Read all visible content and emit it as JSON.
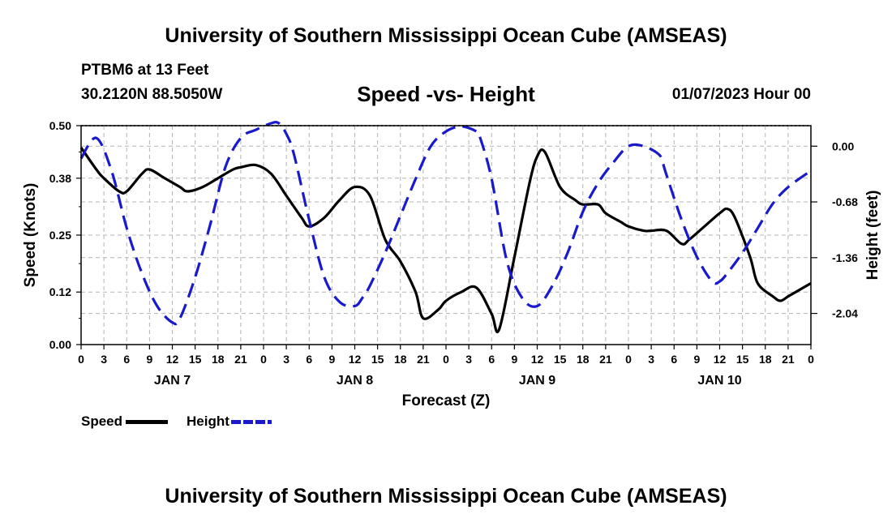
{
  "header": {
    "title": "University of Southern Mississippi Ocean Cube (AMSEAS)",
    "station": "PTBM6 at 13 Feet",
    "coordinates": "30.2120N  88.5050W",
    "subtitle": "Speed -vs- Height",
    "datetime": "01/07/2023 Hour 00"
  },
  "footer": {
    "title": "University of Southern Mississippi Ocean Cube (AMSEAS)"
  },
  "legend": {
    "speed_label": "Speed",
    "height_label": "Height"
  },
  "colors": {
    "speed": "#000000",
    "height": "#1a1acc",
    "grid": "#b4b4b4"
  },
  "chart_data": {
    "type": "line",
    "title": "Speed -vs- Height",
    "xlabel": "Forecast (Z)",
    "ylabel": "Speed (Knots)",
    "ylabel_right": "Height (feet)",
    "grid": true,
    "legend_position": "bottom-left",
    "x_unit": "hours since 01/07/2023 00Z",
    "xlim": [
      0,
      96
    ],
    "x_tick_labels": [
      "0",
      "3",
      "6",
      "9",
      "12",
      "15",
      "18",
      "21",
      "0",
      "3",
      "6",
      "9",
      "12",
      "15",
      "18",
      "21",
      "0",
      "3",
      "6",
      "9",
      "12",
      "15",
      "18",
      "21",
      "0",
      "3",
      "6",
      "9",
      "12",
      "15",
      "18",
      "21",
      "0"
    ],
    "day_labels": [
      {
        "hour": 12,
        "label": "JAN 7"
      },
      {
        "hour": 36,
        "label": "JAN 8"
      },
      {
        "hour": 60,
        "label": "JAN 9"
      },
      {
        "hour": 84,
        "label": "JAN 10"
      }
    ],
    "ylim_left": [
      0,
      0.5
    ],
    "y_ticks_left": [
      "0.00",
      "0.12",
      "0.25",
      "0.38",
      "0.50"
    ],
    "ylim_right": [
      -2.42,
      0.25
    ],
    "y_ticks_right": [
      "0.00",
      "-0.68",
      "-1.36",
      "-2.04"
    ],
    "series": [
      {
        "name": "Speed",
        "axis": "left",
        "style": "solid",
        "x": [
          0,
          2,
          3,
          5,
          6,
          8,
          9,
          11,
          13,
          14,
          16,
          18,
          20,
          21,
          23,
          25,
          27,
          29,
          30,
          32,
          34,
          36,
          38,
          40,
          42,
          44,
          45,
          47,
          48,
          50,
          52,
          54,
          55,
          57,
          59,
          60,
          61,
          63,
          65,
          66,
          68,
          69,
          71,
          72,
          74,
          75,
          77,
          79,
          80,
          82,
          84,
          85,
          86,
          88,
          89,
          91,
          92,
          93,
          94,
          96
        ],
        "values": [
          0.45,
          0.4,
          0.38,
          0.35,
          0.35,
          0.39,
          0.4,
          0.38,
          0.36,
          0.35,
          0.36,
          0.38,
          0.4,
          0.405,
          0.41,
          0.39,
          0.34,
          0.29,
          0.27,
          0.29,
          0.33,
          0.36,
          0.34,
          0.24,
          0.19,
          0.12,
          0.06,
          0.08,
          0.1,
          0.12,
          0.13,
          0.07,
          0.035,
          0.2,
          0.37,
          0.43,
          0.44,
          0.36,
          0.33,
          0.32,
          0.32,
          0.3,
          0.28,
          0.27,
          0.26,
          0.26,
          0.26,
          0.23,
          0.24,
          0.27,
          0.3,
          0.31,
          0.29,
          0.2,
          0.14,
          0.11,
          0.1,
          0.11,
          0.12,
          0.14
        ]
      },
      {
        "name": "Height",
        "axis": "right",
        "style": "dashed",
        "x": [
          0,
          2,
          4,
          6,
          8,
          10,
          12,
          13,
          15,
          17,
          19,
          21,
          23,
          25,
          26,
          27,
          28,
          30,
          32,
          34,
          36,
          37,
          38,
          40,
          42,
          44,
          46,
          48,
          50,
          52,
          52.5,
          54,
          56,
          58,
          60,
          62,
          64,
          66,
          68,
          70,
          72,
          74,
          76,
          76.5,
          77,
          79,
          81,
          83,
          84,
          85,
          87,
          89,
          91,
          93,
          96
        ],
        "values": [
          -0.15,
          0.1,
          -0.3,
          -1.0,
          -1.55,
          -1.95,
          -2.15,
          -2.1,
          -1.6,
          -0.95,
          -0.25,
          0.1,
          0.2,
          0.28,
          0.28,
          0.15,
          -0.1,
          -0.9,
          -1.6,
          -1.9,
          -1.95,
          -1.85,
          -1.7,
          -1.3,
          -0.85,
          -0.4,
          0.0,
          0.18,
          0.24,
          0.18,
          0.1,
          -0.4,
          -1.4,
          -1.85,
          -1.95,
          -1.7,
          -1.3,
          -0.8,
          -0.45,
          -0.2,
          0.0,
          0.0,
          -0.1,
          -0.2,
          -0.35,
          -0.9,
          -1.35,
          -1.65,
          -1.65,
          -1.55,
          -1.3,
          -1.0,
          -0.7,
          -0.5,
          -0.3
        ]
      }
    ]
  }
}
